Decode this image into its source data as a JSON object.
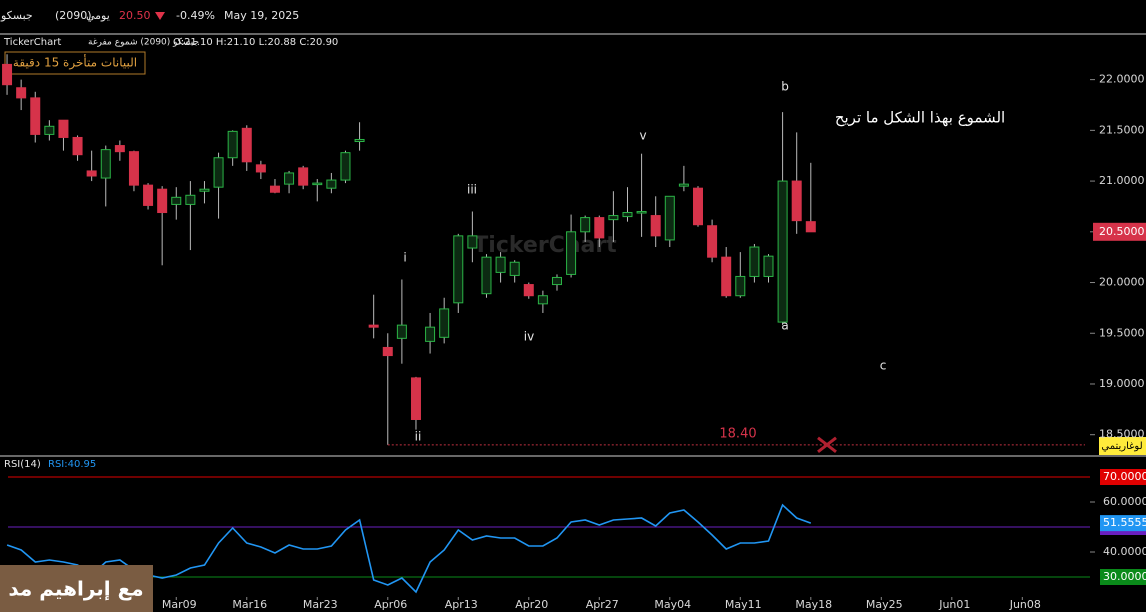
{
  "header": {
    "name": "جبسكو",
    "code": "(2090)",
    "period": "يومي",
    "price": "20.50",
    "change": "-0.49%",
    "date": "May 19, 2025",
    "source": "TickerChart",
    "chart_name": "جبسكو (2090) شموع مفرغة",
    "ohlc": "O:21.10  H:21.10  L:20.88  C:20.90",
    "delay": "البيانات متأخرة 15 دقيقة",
    "scale_mode": "لوغاريتمي",
    "watermark": "TickerChart",
    "author": "مع إبراهيم مد"
  },
  "chart_data": [
    {
      "type": "candlestick",
      "open": [
        22.15,
        21.92,
        21.82,
        21.46,
        21.6,
        21.43,
        21.1,
        21.03,
        21.35,
        21.29,
        20.96,
        20.92,
        20.77,
        20.77,
        20.9,
        20.94,
        21.23,
        21.52,
        21.16,
        20.95,
        20.97,
        21.13,
        20.97,
        20.93,
        21.01,
        21.39,
        19.58,
        19.36,
        19.45,
        19.06,
        19.42,
        19.46,
        19.8,
        20.34,
        19.89,
        20.1,
        20.07,
        19.98,
        19.79,
        19.98,
        20.08,
        20.5,
        20.64,
        20.62,
        20.65,
        20.69,
        20.66,
        20.42,
        20.95,
        20.93,
        20.56,
        20.25,
        19.87,
        20.06,
        20.06,
        19.61,
        21.0,
        20.6
      ],
      "high": [
        22.25,
        22.0,
        21.88,
        21.6,
        21.6,
        21.45,
        21.3,
        21.35,
        21.4,
        21.3,
        20.98,
        20.95,
        20.94,
        21.0,
        21.0,
        21.28,
        21.5,
        21.55,
        21.2,
        21.02,
        21.1,
        21.15,
        21.02,
        21.08,
        21.3,
        21.58,
        19.88,
        19.5,
        20.03,
        19.07,
        19.7,
        19.85,
        20.48,
        20.7,
        20.28,
        20.3,
        20.22,
        20.0,
        19.92,
        20.08,
        20.67,
        20.66,
        20.66,
        20.9,
        20.94,
        21.27,
        20.85,
        20.85,
        21.15,
        20.95,
        20.62,
        20.35,
        20.3,
        20.38,
        20.28,
        21.68,
        21.48,
        21.18
      ],
      "low": [
        21.85,
        21.7,
        21.38,
        21.4,
        21.3,
        21.2,
        21.0,
        20.75,
        21.2,
        20.9,
        20.72,
        20.17,
        20.62,
        20.32,
        20.78,
        20.63,
        21.15,
        21.1,
        21.02,
        20.88,
        20.88,
        20.92,
        20.8,
        20.88,
        20.98,
        21.3,
        19.45,
        18.4,
        19.2,
        18.55,
        19.3,
        19.4,
        19.7,
        20.2,
        19.85,
        20.0,
        20.0,
        19.84,
        19.7,
        19.92,
        20.05,
        20.4,
        20.35,
        20.4,
        20.6,
        20.45,
        20.35,
        20.35,
        20.9,
        20.55,
        20.2,
        19.85,
        19.85,
        20.0,
        20.0,
        19.58,
        20.48,
        20.5
      ],
      "close": [
        21.95,
        21.82,
        21.46,
        21.54,
        21.43,
        21.26,
        21.05,
        21.31,
        21.29,
        20.96,
        20.76,
        20.69,
        20.84,
        20.86,
        20.92,
        21.23,
        21.49,
        21.19,
        21.09,
        20.89,
        21.08,
        20.96,
        20.98,
        21.01,
        21.28,
        21.41,
        19.56,
        19.28,
        19.58,
        18.65,
        19.56,
        19.74,
        20.46,
        20.46,
        20.25,
        20.25,
        20.2,
        19.87,
        19.87,
        20.05,
        20.5,
        20.64,
        20.44,
        20.66,
        20.69,
        20.7,
        20.46,
        20.85,
        20.97,
        20.57,
        20.25,
        19.87,
        20.06,
        20.35,
        20.26,
        21.0,
        20.61,
        20.5
      ],
      "up_color": "#2bb546",
      "down_color": "#d6334a",
      "xlim": [
        -0.5,
        76.8
      ],
      "ylim": [
        18.3,
        22.43
      ],
      "xticks": [
        {
          "value": 12,
          "label": "Mar09"
        },
        {
          "value": 17,
          "label": "Mar16"
        },
        {
          "value": 22,
          "label": "Mar23"
        },
        {
          "value": 27,
          "label": "Apr06"
        },
        {
          "value": 32,
          "label": "Apr13"
        },
        {
          "value": 37,
          "label": "Apr20"
        },
        {
          "value": 42,
          "label": "Apr27"
        },
        {
          "value": 47,
          "label": "May04"
        },
        {
          "value": 52,
          "label": "May11"
        },
        {
          "value": 57,
          "label": "May18"
        },
        {
          "value": 62,
          "label": "May25"
        },
        {
          "value": 67,
          "label": "Jun01"
        },
        {
          "value": 72,
          "label": "Jun08"
        }
      ],
      "yticks": [
        {
          "value": 22,
          "label": "22.0000"
        },
        {
          "value": 21.5,
          "label": "21.5000"
        },
        {
          "value": 21,
          "label": "21.0000"
        },
        {
          "value": 20.5,
          "label": "20.5000"
        },
        {
          "value": 20,
          "label": "20.0000"
        },
        {
          "value": 19.5,
          "label": "19.5000"
        },
        {
          "value": 19,
          "label": "19.0000"
        },
        {
          "value": 18.5,
          "label": "18.5000"
        }
      ],
      "last_price": {
        "value": 20.5,
        "label": "20.5000"
      },
      "low_line": {
        "value": 18.4,
        "label": "18.40"
      },
      "wave_labels": [
        "i",
        "ii",
        "iii",
        "iv",
        "v",
        "b",
        "a",
        "c"
      ],
      "annotation": "الشموع بهذا الشكل ما تريح"
    },
    {
      "type": "line",
      "title": "RSI(14)",
      "subtitle": "RSI:40.95",
      "color": "#2196f3",
      "values": [
        42.8,
        40.8,
        36,
        36.8,
        36,
        34.8,
        30.8,
        36,
        36.8,
        32.8,
        30.8,
        29.6,
        30.8,
        33.6,
        34.8,
        43.6,
        49.6,
        43.6,
        42,
        39.6,
        42.8,
        41.2,
        41.2,
        42.4,
        48.8,
        52.8,
        28.8,
        26.8,
        29.6,
        24,
        36,
        40.8,
        48.8,
        44.8,
        46.4,
        45.6,
        45.6,
        42.4,
        42.4,
        45.6,
        52,
        52.8,
        50.8,
        52.8,
        53.2,
        53.6,
        50.4,
        55.6,
        56.8,
        52,
        46.8,
        41.2,
        43.6,
        43.6,
        44.4,
        58.8,
        53.6,
        51.5555
      ],
      "ylim": [
        22,
        77.6
      ],
      "yticks": [
        {
          "value": 70,
          "label": "70.0000",
          "color": "#e00000"
        },
        {
          "value": 60,
          "label": "60.0000"
        },
        {
          "value": 50,
          "label": "50.0000",
          "color": "#6a1fc0"
        },
        {
          "value": 40,
          "label": "40.0000"
        },
        {
          "value": 30,
          "label": "30.0000",
          "color": "#0a8a1a"
        }
      ],
      "last_value": {
        "value": 51.5555,
        "label": "51.5555"
      }
    }
  ]
}
